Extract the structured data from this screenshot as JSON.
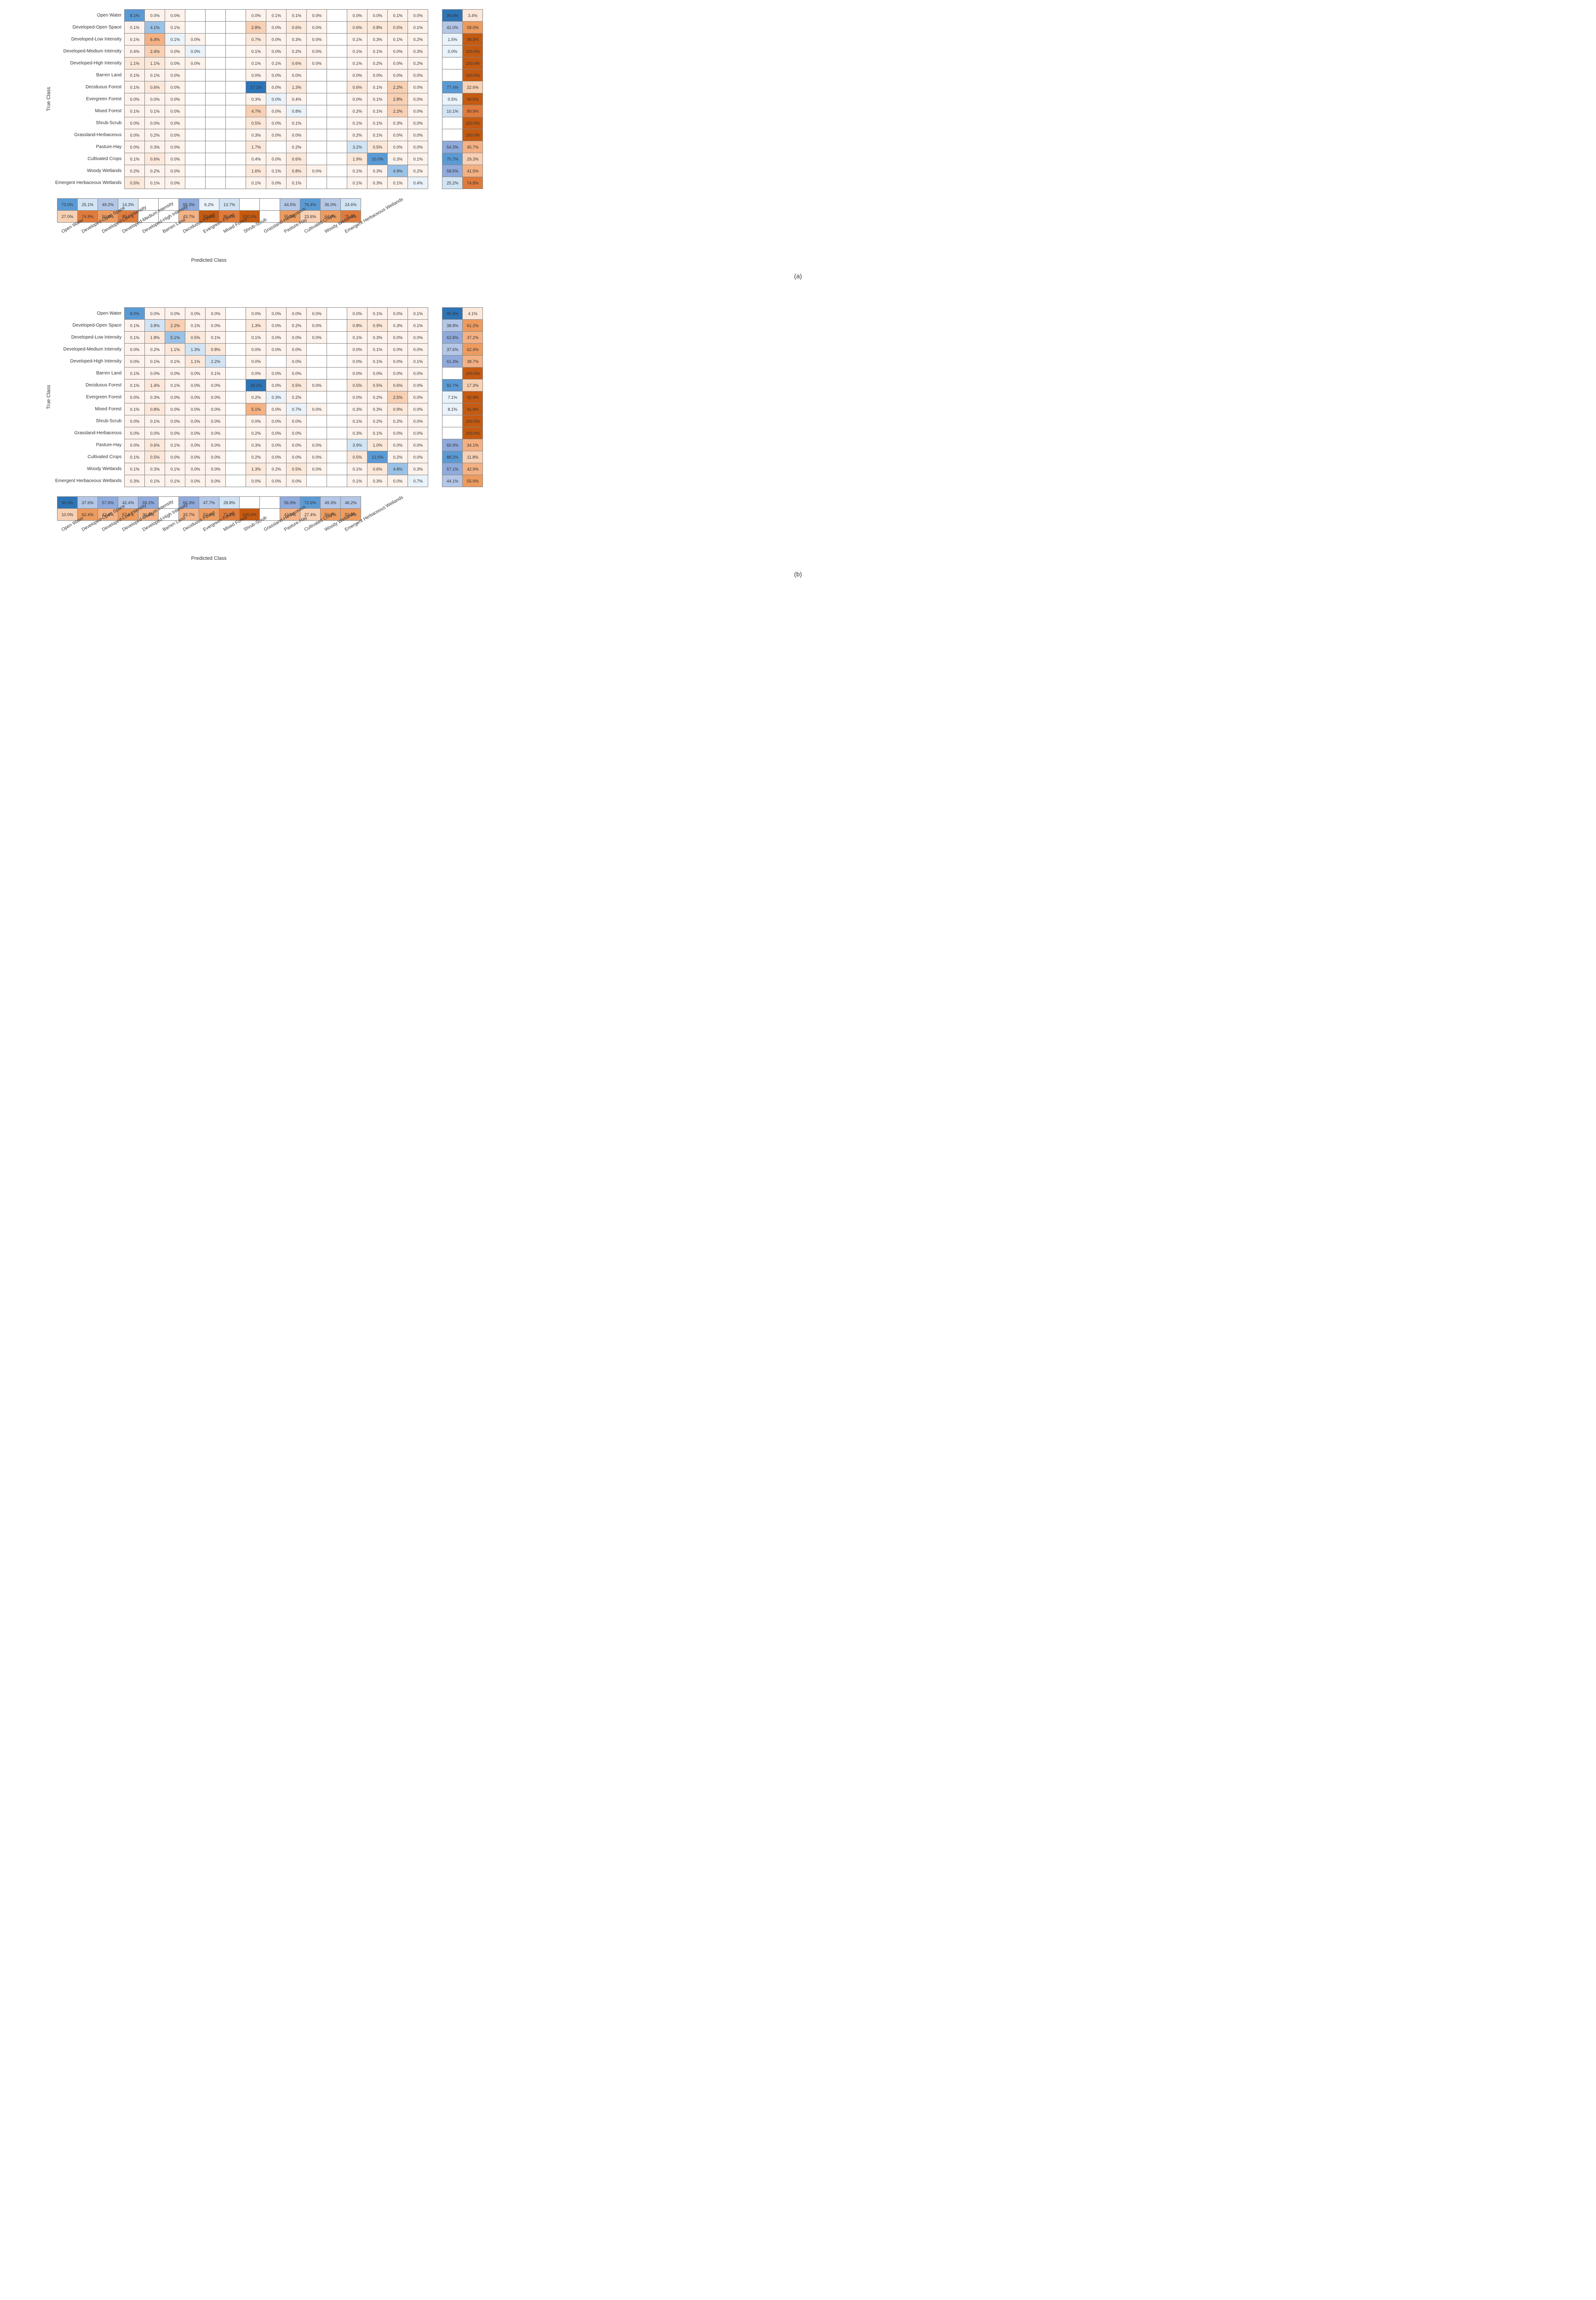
{
  "classes": [
    "Open Water",
    "Developed-Open Space",
    "Developed-Low Intensity",
    "Developed-Medium Intensity",
    "Developed-High Intensity",
    "Barren Land",
    "Deciduous Forest",
    "Evergreen Forest",
    "Mixed Forest",
    "Shrub-Scrub",
    "Grassland-Herbaceous",
    "Pasture-Hay",
    "Cultivated Crops",
    "Woody Wetlands",
    "Emergent Herbaceous Wetlands"
  ],
  "y_label": "True Class",
  "x_label": "Predicted Class",
  "captions": [
    "(a)",
    "(b)"
  ],
  "colors": {
    "grid_border": "#888888",
    "text": "#333333",
    "bg": "#ffffff"
  },
  "panels": [
    {
      "matrix": [
        [
          8.1,
          0.0,
          0.0,
          null,
          null,
          null,
          0.0,
          0.1,
          0.1,
          0.0,
          null,
          0.0,
          0.0,
          0.1,
          0.0
        ],
        [
          0.1,
          4.1,
          0.1,
          null,
          null,
          null,
          2.8,
          0.0,
          0.6,
          0.0,
          null,
          0.6,
          0.8,
          0.5,
          0.1
        ],
        [
          0.1,
          6.4,
          0.1,
          0.0,
          null,
          null,
          0.7,
          0.0,
          0.3,
          0.0,
          null,
          0.1,
          0.3,
          0.1,
          0.2
        ],
        [
          0.4,
          2.4,
          0.0,
          0.0,
          null,
          null,
          0.1,
          0.0,
          0.2,
          0.0,
          null,
          0.1,
          0.1,
          0.0,
          0.3
        ],
        [
          1.1,
          1.1,
          0.0,
          0.0,
          null,
          null,
          0.1,
          0.1,
          0.6,
          0.0,
          null,
          0.1,
          0.2,
          0.0,
          0.2
        ],
        [
          0.1,
          0.1,
          0.0,
          null,
          null,
          null,
          0.0,
          0.0,
          0.0,
          null,
          null,
          0.0,
          0.0,
          0.0,
          0.0
        ],
        [
          0.1,
          0.6,
          0.0,
          null,
          null,
          null,
          17.1,
          0.0,
          1.3,
          null,
          null,
          0.6,
          0.1,
          2.2,
          0.0
        ],
        [
          0.0,
          0.0,
          0.0,
          null,
          null,
          null,
          0.3,
          0.0,
          0.4,
          null,
          null,
          0.0,
          0.1,
          2.8,
          0.0
        ],
        [
          0.1,
          0.1,
          0.0,
          null,
          null,
          null,
          4.7,
          0.0,
          0.8,
          null,
          null,
          0.2,
          0.1,
          2.2,
          0.0
        ],
        [
          0.0,
          0.0,
          0.0,
          null,
          null,
          null,
          0.5,
          0.0,
          0.1,
          null,
          null,
          0.1,
          0.1,
          0.3,
          0.0
        ],
        [
          0.0,
          0.2,
          0.0,
          null,
          null,
          null,
          0.3,
          0.0,
          0.0,
          null,
          null,
          0.2,
          0.1,
          0.0,
          0.0
        ],
        [
          0.0,
          0.3,
          0.0,
          null,
          null,
          null,
          1.7,
          null,
          0.2,
          null,
          null,
          3.2,
          0.5,
          0.0,
          0.0
        ],
        [
          0.1,
          0.6,
          0.0,
          null,
          null,
          null,
          0.4,
          0.0,
          0.6,
          null,
          null,
          1.9,
          10.0,
          0.3,
          0.1
        ],
        [
          0.2,
          0.2,
          0.0,
          null,
          null,
          null,
          1.6,
          0.1,
          0.8,
          0.0,
          null,
          0.1,
          0.3,
          4.9,
          0.2
        ],
        [
          0.5,
          0.1,
          0.0,
          null,
          null,
          null,
          0.1,
          0.0,
          0.1,
          null,
          null,
          0.1,
          0.3,
          0.1,
          0.4
        ]
      ],
      "side": [
        [
          96.6,
          3.4
        ],
        [
          42.0,
          58.0
        ],
        [
          1.5,
          98.5
        ],
        [
          0.0,
          100.0
        ],
        [
          null,
          100.0
        ],
        [
          null,
          100.0
        ],
        [
          77.4,
          22.6
        ],
        [
          0.5,
          99.5
        ],
        [
          10.1,
          89.9
        ],
        [
          null,
          100.0
        ],
        [
          null,
          100.0
        ],
        [
          54.3,
          45.7
        ],
        [
          70.7,
          29.3
        ],
        [
          58.5,
          41.5
        ],
        [
          25.2,
          74.8
        ]
      ],
      "bottom": [
        [
          73.0,
          25.1,
          49.2,
          14.3,
          null,
          null,
          56.3,
          6.2,
          13.7,
          null,
          null,
          44.5,
          76.4,
          36.0,
          24.6
        ],
        [
          27.0,
          74.9,
          50.8,
          85.7,
          null,
          null,
          43.7,
          93.8,
          86.3,
          100.0,
          null,
          55.5,
          23.6,
          64.0,
          75.4
        ]
      ]
    },
    {
      "matrix": [
        [
          8.0,
          0.0,
          0.0,
          0.0,
          0.0,
          null,
          0.0,
          0.0,
          0.0,
          0.0,
          null,
          0.0,
          0.1,
          0.0,
          0.1
        ],
        [
          0.1,
          3.8,
          2.2,
          0.1,
          0.0,
          null,
          1.3,
          0.0,
          0.2,
          0.0,
          null,
          0.8,
          0.9,
          0.3,
          0.1
        ],
        [
          0.1,
          1.8,
          5.1,
          0.5,
          0.1,
          null,
          0.1,
          0.0,
          0.0,
          0.0,
          null,
          0.1,
          0.3,
          0.0,
          0.0
        ],
        [
          0.0,
          0.2,
          1.1,
          1.3,
          0.8,
          null,
          0.0,
          0.0,
          0.0,
          null,
          null,
          0.0,
          0.1,
          0.0,
          0.0
        ],
        [
          0.0,
          0.1,
          0.1,
          1.1,
          2.2,
          null,
          0.0,
          null,
          0.0,
          null,
          null,
          0.0,
          0.1,
          0.0,
          0.1
        ],
        [
          0.1,
          0.0,
          0.0,
          0.0,
          0.1,
          null,
          0.0,
          0.0,
          0.0,
          null,
          null,
          0.0,
          0.0,
          0.0,
          0.0
        ],
        [
          0.1,
          1.4,
          0.1,
          0.0,
          0.0,
          null,
          18.2,
          0.0,
          0.5,
          0.0,
          null,
          0.5,
          0.5,
          0.6,
          0.0
        ],
        [
          0.0,
          0.3,
          0.0,
          0.0,
          0.0,
          null,
          0.2,
          0.3,
          0.2,
          null,
          null,
          0.0,
          0.2,
          2.5,
          0.0
        ],
        [
          0.1,
          0.8,
          0.0,
          0.0,
          0.0,
          null,
          5.1,
          0.0,
          0.7,
          0.0,
          null,
          0.3,
          0.3,
          0.9,
          0.0
        ],
        [
          0.0,
          0.1,
          0.0,
          0.0,
          0.0,
          null,
          0.0,
          0.0,
          0.0,
          null,
          null,
          0.1,
          0.2,
          0.2,
          0.0
        ],
        [
          0.0,
          0.0,
          0.0,
          0.0,
          0.0,
          null,
          0.2,
          0.0,
          0.0,
          null,
          null,
          0.3,
          0.1,
          0.0,
          0.0
        ],
        [
          0.0,
          0.6,
          0.1,
          0.0,
          0.0,
          null,
          0.3,
          0.0,
          0.0,
          0.0,
          null,
          3.9,
          1.0,
          0.0,
          0.0
        ],
        [
          0.1,
          0.5,
          0.0,
          0.0,
          0.0,
          null,
          0.2,
          0.0,
          0.0,
          0.0,
          null,
          0.5,
          12.5,
          0.2,
          0.0
        ],
        [
          0.1,
          0.3,
          0.1,
          0.0,
          0.0,
          null,
          1.3,
          0.2,
          0.5,
          0.0,
          null,
          0.1,
          0.6,
          4.8,
          0.3
        ],
        [
          0.3,
          0.1,
          0.1,
          0.0,
          0.0,
          null,
          0.0,
          0.0,
          0.0,
          null,
          null,
          0.1,
          0.3,
          0.0,
          0.7
        ]
      ],
      "side": [
        [
          95.9,
          4.1
        ],
        [
          38.8,
          61.2
        ],
        [
          62.8,
          37.2
        ],
        [
          37.6,
          62.4
        ],
        [
          61.3,
          38.7
        ],
        [
          null,
          100.0
        ],
        [
          82.7,
          17.3
        ],
        [
          7.1,
          92.9
        ],
        [
          8.1,
          91.9
        ],
        [
          null,
          100.0
        ],
        [
          null,
          100.0
        ],
        [
          65.9,
          34.1
        ],
        [
          88.2,
          11.8
        ],
        [
          57.1,
          42.9
        ],
        [
          44.1,
          55.9
        ]
      ],
      "bottom": [
        [
          90.0,
          37.6,
          57.6,
          42.4,
          69.2,
          null,
          66.3,
          47.7,
          28.8,
          null,
          null,
          56.9,
          72.6,
          49.3,
          46.2
        ],
        [
          10.0,
          62.4,
          42.4,
          57.6,
          30.8,
          null,
          33.7,
          52.3,
          71.2,
          100.0,
          null,
          43.1,
          27.4,
          50.7,
          53.8
        ]
      ]
    }
  ]
}
